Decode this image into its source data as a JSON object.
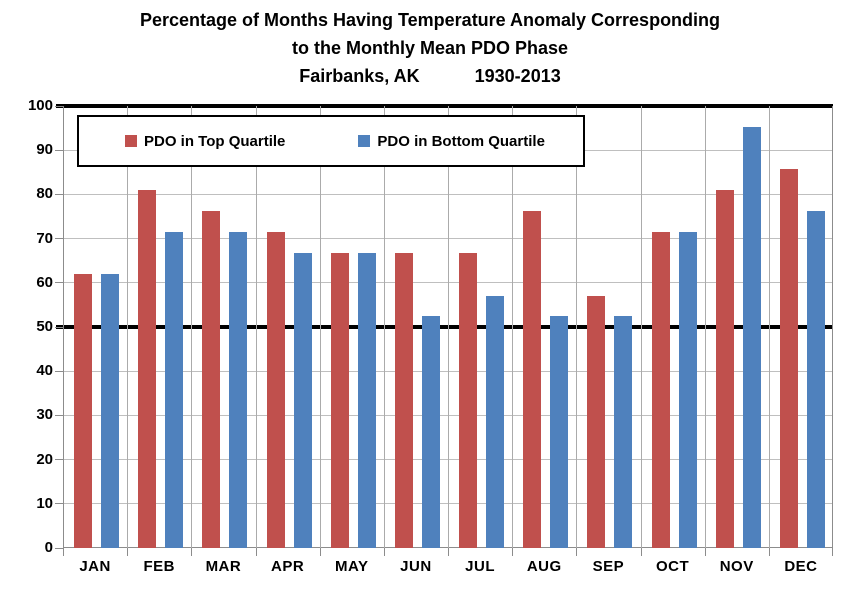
{
  "title": {
    "line1": "Percentage of Months Having Temperature Anomaly Corresponding",
    "line2": "to the Monthly Mean PDO Phase",
    "line3_left": "Fairbanks, AK",
    "line3_right": "1930-2013"
  },
  "legend": {
    "items": [
      {
        "label": "PDO in Top Quartile",
        "color": "#C0504D"
      },
      {
        "label": "PDO in Bottom Quartile",
        "color": "#4F81BD"
      }
    ]
  },
  "colors": {
    "top_quartile": "#C0504D",
    "bottom_quartile": "#4F81BD",
    "gridline": "#BFBFBF",
    "reference_line": "#000000",
    "axis": "#8C8C8C"
  },
  "chart_data": {
    "type": "bar",
    "title": "Percentage of Months Having Temperature Anomaly Corresponding to the Monthly Mean PDO Phase",
    "subtitle": "Fairbanks, AK 1930-2013",
    "categories": [
      "JAN",
      "FEB",
      "MAR",
      "APR",
      "MAY",
      "JUN",
      "JUL",
      "AUG",
      "SEP",
      "OCT",
      "NOV",
      "DEC"
    ],
    "series": [
      {
        "name": "PDO in Top Quartile",
        "color": "#C0504D",
        "values": [
          61.9,
          81.0,
          76.2,
          71.4,
          66.7,
          66.7,
          66.7,
          76.2,
          57.1,
          71.4,
          81.0,
          85.7
        ]
      },
      {
        "name": "PDO in Bottom Quartile",
        "color": "#4F81BD",
        "values": [
          61.9,
          71.4,
          71.4,
          66.7,
          66.7,
          52.4,
          57.1,
          52.4,
          52.4,
          71.4,
          95.2,
          76.2
        ]
      }
    ],
    "xlabel": "",
    "ylabel": "",
    "ylim": [
      0,
      100
    ],
    "ytick_step": 10,
    "yticks": [
      0,
      10,
      20,
      30,
      40,
      50,
      60,
      70,
      80,
      90,
      100
    ],
    "reference_lines": [
      50,
      100
    ],
    "grid": {
      "horizontal": true,
      "vertical": true
    },
    "legend_position": "top-left-inside"
  }
}
